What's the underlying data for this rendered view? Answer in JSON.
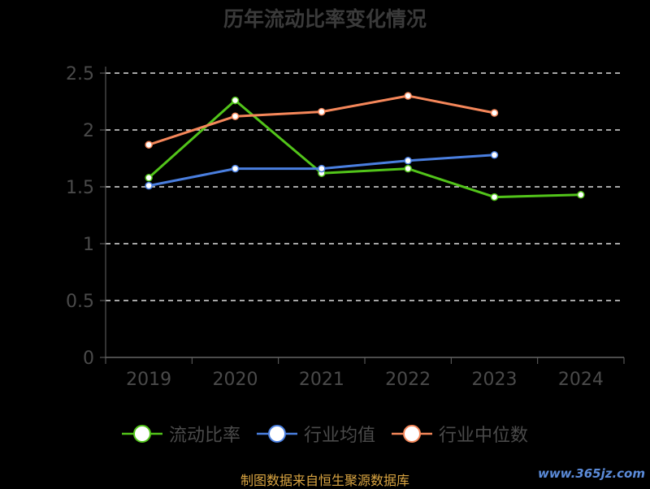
{
  "chart_data": {
    "type": "line",
    "title": "历年流动比率变化情况",
    "categories": [
      "2019",
      "2020",
      "2021",
      "2022",
      "2023",
      "2024"
    ],
    "ylim": [
      0,
      2.5
    ],
    "yticks": [
      "0",
      "0.5",
      "1",
      "1.5",
      "2",
      "2.5"
    ],
    "grid": true,
    "legend_position": "bottom",
    "series": [
      {
        "name": "流动比率",
        "color": "#52c41a",
        "values": [
          1.58,
          2.26,
          1.62,
          1.66,
          1.41,
          1.43
        ]
      },
      {
        "name": "行业均值",
        "color": "#4a7fe0",
        "values": [
          1.51,
          1.66,
          1.66,
          1.73,
          1.78,
          null
        ]
      },
      {
        "name": "行业中位数",
        "color": "#f5875a",
        "values": [
          1.87,
          2.12,
          2.16,
          2.3,
          2.15,
          null
        ]
      }
    ]
  },
  "footer": {
    "source": "制图数据来自恒生聚源数据库",
    "watermark": "www.365jz.com"
  }
}
